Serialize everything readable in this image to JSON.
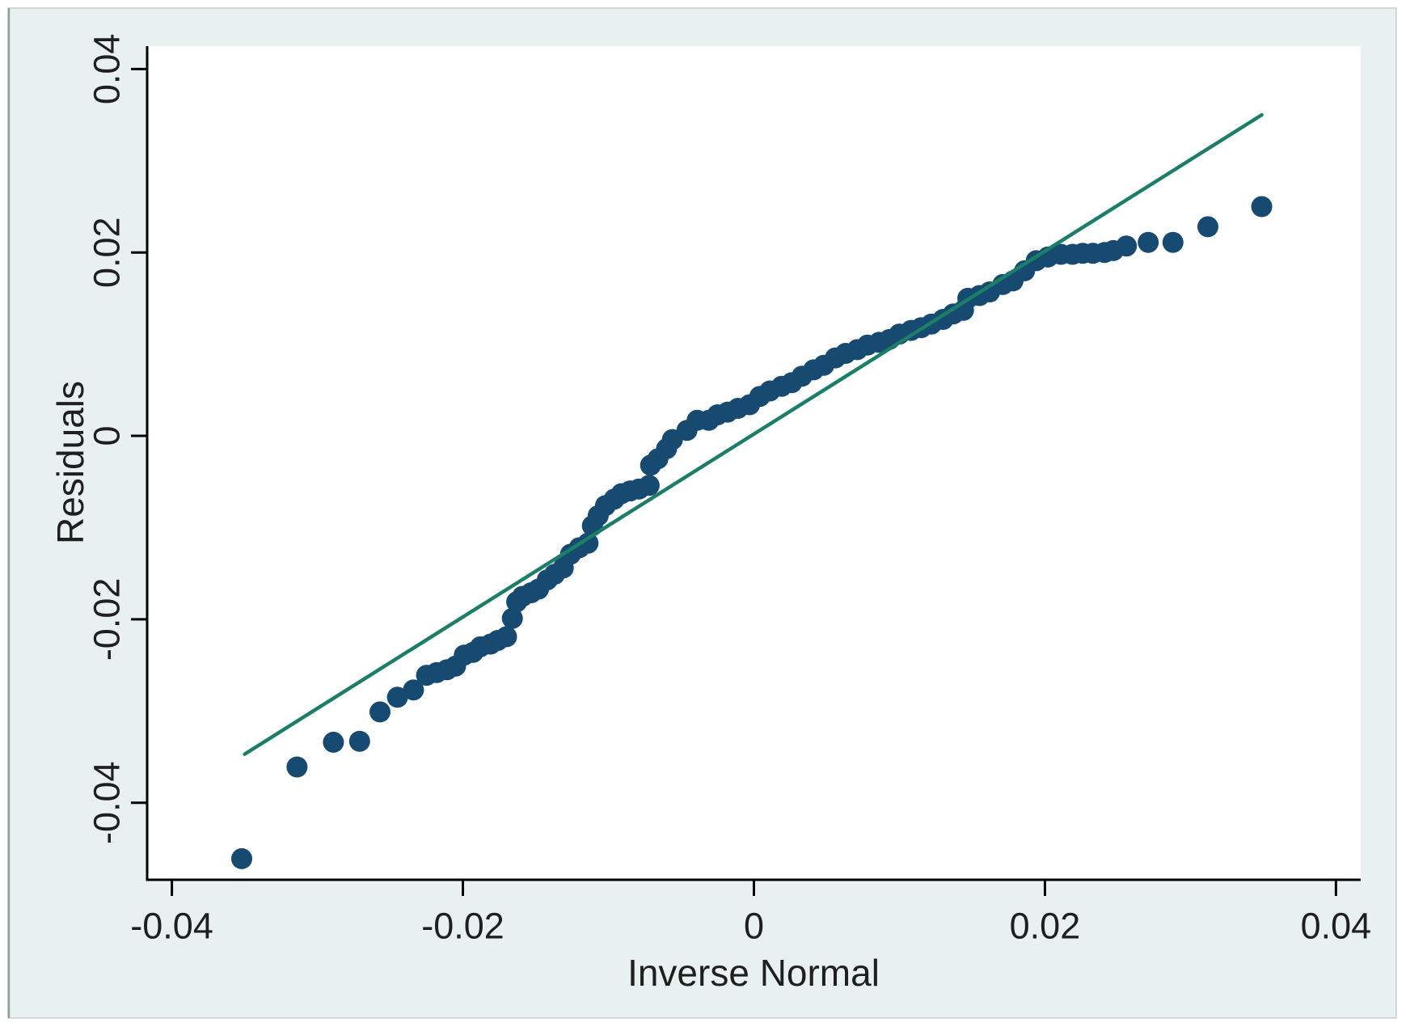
{
  "figure": {
    "page_background": "#ffffff",
    "panel_background": "#e8f1f0",
    "panel_border_left_color": "#8f9f9d",
    "panel_border_color": "#c4d1cf",
    "plot_background": "#ffffff"
  },
  "chart_data": {
    "type": "scatter",
    "title": "",
    "xlabel": "Inverse Normal",
    "ylabel": "Residuals",
    "x_tick_labels": [
      "-0.04",
      "-0.02",
      "0",
      "0.02",
      "0.04"
    ],
    "x_tick_values": [
      -0.04,
      -0.02,
      0,
      0.02,
      0.04
    ],
    "y_tick_labels": [
      "0.04",
      "0.02",
      "0",
      "-0.02",
      "-0.04"
    ],
    "y_tick_values": [
      0.04,
      0.02,
      0,
      -0.02,
      -0.04
    ],
    "xlim": [
      -0.0417,
      0.0417
    ],
    "ylim": [
      -0.0484,
      0.0425
    ],
    "grid": false,
    "legend": null,
    "axis_color": "#000000",
    "text_color": "#1f1f1f",
    "point_color": "#174a70",
    "line_color": "#1c7d68",
    "reference_line": {
      "name": "normal-reference-line",
      "points": [
        [
          -0.035,
          -0.0347
        ],
        [
          0.0349,
          0.035
        ]
      ]
    },
    "points": [
      [
        -0.0352,
        -0.0461
      ],
      [
        -0.0314,
        -0.0361
      ],
      [
        -0.0289,
        -0.0334
      ],
      [
        -0.0271,
        -0.0333
      ],
      [
        -0.0257,
        -0.0301
      ],
      [
        -0.0245,
        -0.0285
      ],
      [
        -0.0234,
        -0.0277
      ],
      [
        -0.0225,
        -0.0261
      ],
      [
        -0.0218,
        -0.0258
      ],
      [
        -0.0211,
        -0.0255
      ],
      [
        -0.0205,
        -0.0251
      ],
      [
        -0.0199,
        -0.0239
      ],
      [
        -0.0193,
        -0.0236
      ],
      [
        -0.0188,
        -0.023
      ],
      [
        -0.0181,
        -0.0227
      ],
      [
        -0.0176,
        -0.0223
      ],
      [
        -0.017,
        -0.0219
      ],
      [
        -0.0166,
        -0.0199
      ],
      [
        -0.0163,
        -0.0181
      ],
      [
        -0.0159,
        -0.0175
      ],
      [
        -0.0153,
        -0.0171
      ],
      [
        -0.0148,
        -0.0167
      ],
      [
        -0.0142,
        -0.0157
      ],
      [
        -0.0137,
        -0.0151
      ],
      [
        -0.0131,
        -0.0144
      ],
      [
        -0.0126,
        -0.0129
      ],
      [
        -0.012,
        -0.0122
      ],
      [
        -0.0114,
        -0.0117
      ],
      [
        -0.0111,
        -0.0098
      ],
      [
        -0.0107,
        -0.0087
      ],
      [
        -0.0102,
        -0.0076
      ],
      [
        -0.0096,
        -0.0069
      ],
      [
        -0.0091,
        -0.0063
      ],
      [
        -0.0085,
        -0.006
      ],
      [
        -0.0079,
        -0.0058
      ],
      [
        -0.0072,
        -0.0054
      ],
      [
        -0.0071,
        -0.0032
      ],
      [
        -0.0066,
        -0.0025
      ],
      [
        -0.006,
        -0.0014
      ],
      [
        -0.0056,
        -0.0004
      ],
      [
        -0.0046,
        0.0006
      ],
      [
        -0.0039,
        0.0017
      ],
      [
        -0.0031,
        0.0017
      ],
      [
        -0.0025,
        0.0023
      ],
      [
        -0.0018,
        0.0026
      ],
      [
        -0.0011,
        0.003
      ],
      [
        -0.0003,
        0.0034
      ],
      [
        0.0004,
        0.0043
      ],
      [
        0.0011,
        0.0049
      ],
      [
        0.0019,
        0.0054
      ],
      [
        0.0026,
        0.0058
      ],
      [
        0.0033,
        0.0065
      ],
      [
        0.0041,
        0.0072
      ],
      [
        0.0048,
        0.0077
      ],
      [
        0.0056,
        0.0085
      ],
      [
        0.0063,
        0.009
      ],
      [
        0.0071,
        0.0094
      ],
      [
        0.0078,
        0.0099
      ],
      [
        0.0086,
        0.0102
      ],
      [
        0.0093,
        0.0105
      ],
      [
        0.01,
        0.0111
      ],
      [
        0.0108,
        0.0115
      ],
      [
        0.0115,
        0.0118
      ],
      [
        0.0122,
        0.0122
      ],
      [
        0.013,
        0.0127
      ],
      [
        0.0137,
        0.0133
      ],
      [
        0.0144,
        0.0137
      ],
      [
        0.0147,
        0.015
      ],
      [
        0.0155,
        0.0153
      ],
      [
        0.0162,
        0.0157
      ],
      [
        0.0171,
        0.0165
      ],
      [
        0.0178,
        0.0169
      ],
      [
        0.0186,
        0.018
      ],
      [
        0.0194,
        0.0191
      ],
      [
        0.0202,
        0.0195
      ],
      [
        0.0211,
        0.0198
      ],
      [
        0.0219,
        0.0198
      ],
      [
        0.0226,
        0.0199
      ],
      [
        0.0233,
        0.0199
      ],
      [
        0.0241,
        0.02
      ],
      [
        0.0247,
        0.0202
      ],
      [
        0.0256,
        0.0207
      ],
      [
        0.0271,
        0.0211
      ],
      [
        0.0288,
        0.0211
      ],
      [
        0.0312,
        0.0228
      ],
      [
        0.0349,
        0.025
      ]
    ]
  }
}
